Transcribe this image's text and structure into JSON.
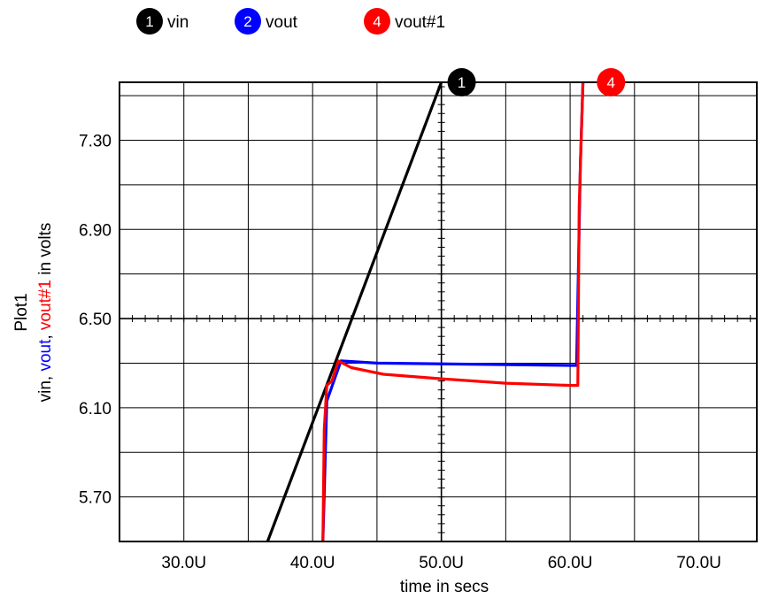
{
  "chart_data": {
    "type": "line",
    "title": "",
    "plot_name": "Plot1",
    "xlabel": "time in secs",
    "ylabel_parts": [
      {
        "text": "vin",
        "color": "#000000"
      },
      {
        "text": ", ",
        "color": "#000000"
      },
      {
        "text": "vout",
        "color": "#0000ff"
      },
      {
        "text": ", ",
        "color": "#000000"
      },
      {
        "text": "vout#1",
        "color": "#ff0000"
      },
      {
        "text": " in volts",
        "color": "#000000"
      }
    ],
    "xlim": [
      2.5e-05,
      7.45e-05
    ],
    "ylim": [
      5.5,
      7.56
    ],
    "x_ticks": [
      {
        "value": 3e-05,
        "label": "30.0U"
      },
      {
        "value": 4e-05,
        "label": "40.0U"
      },
      {
        "value": 5e-05,
        "label": "50.0U"
      },
      {
        "value": 6e-05,
        "label": "60.0U"
      },
      {
        "value": 7e-05,
        "label": "70.0U"
      }
    ],
    "y_ticks": [
      {
        "value": 5.7,
        "label": "5.70"
      },
      {
        "value": 6.1,
        "label": "6.10"
      },
      {
        "value": 6.5,
        "label": "6.50"
      },
      {
        "value": 6.9,
        "label": "6.90"
      },
      {
        "value": 7.3,
        "label": "7.30"
      }
    ],
    "grid": true,
    "legend_position": "top",
    "series": [
      {
        "name": "vin",
        "badge": "1",
        "color": "#000000",
        "points": [
          [
            3.65e-05,
            5.5
          ],
          [
            5e-05,
            7.56
          ]
        ]
      },
      {
        "name": "vout",
        "badge": "2",
        "color": "#0000ff",
        "points": [
          [
            4.08e-05,
            5.5
          ],
          [
            4.11e-05,
            6.13
          ],
          [
            4.22e-05,
            6.31
          ],
          [
            4.5e-05,
            6.3
          ],
          [
            6e-05,
            6.29
          ],
          [
            6.05e-05,
            6.29
          ],
          [
            6.08e-05,
            7.2
          ],
          [
            6.1e-05,
            7.56
          ]
        ]
      },
      {
        "name": "vout#1",
        "badge": "4",
        "color": "#ff0000",
        "points": [
          [
            4.08e-05,
            5.5
          ],
          [
            4.09e-05,
            6.0
          ],
          [
            4.11e-05,
            6.2
          ],
          [
            4.15e-05,
            6.22
          ],
          [
            4.2e-05,
            6.31
          ],
          [
            4.3e-05,
            6.28
          ],
          [
            4.55e-05,
            6.25
          ],
          [
            5e-05,
            6.23
          ],
          [
            5.5e-05,
            6.21
          ],
          [
            6e-05,
            6.2
          ],
          [
            6.06e-05,
            6.2
          ],
          [
            6.07e-05,
            7.0
          ],
          [
            6.1e-05,
            7.56
          ]
        ]
      }
    ],
    "markers": [
      {
        "badge": "1",
        "color": "#000000",
        "x": 5.02e-05,
        "y": 7.56
      },
      {
        "badge": "4",
        "color": "#ff0000",
        "x": 6.18e-05,
        "y": 7.56
      }
    ]
  }
}
